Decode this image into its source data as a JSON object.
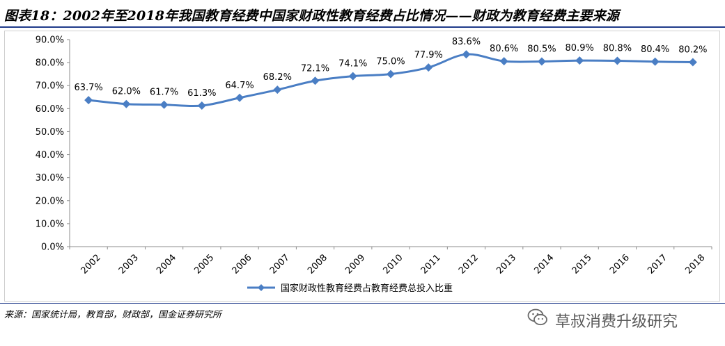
{
  "figure": {
    "title": "图表18：2002年至2018年我国教育经费中国家财政性教育经费占比情况——财政为教育经费主要来源",
    "source": "来源：国家统计局，教育部，财政部，国金证券研究所"
  },
  "watermark": {
    "text": "草叔消费升级研究",
    "logo_icon": "wechat-icon"
  },
  "colors": {
    "series": "#4a7ec4",
    "title_rule": "#1f3a8a"
  },
  "chart_data": {
    "type": "line",
    "title": "",
    "xlabel": "",
    "ylabel": "",
    "ylim": [
      0,
      90
    ],
    "yticks": [
      0,
      10,
      20,
      30,
      40,
      50,
      60,
      70,
      80,
      90
    ],
    "ytick_labels": [
      "0.0%",
      "10.0%",
      "20.0%",
      "30.0%",
      "40.0%",
      "50.0%",
      "60.0%",
      "70.0%",
      "80.0%",
      "90.0%"
    ],
    "grid": false,
    "legend_position": "bottom",
    "categories": [
      "2002",
      "2003",
      "2004",
      "2005",
      "2006",
      "2007",
      "2008",
      "2009",
      "2010",
      "2011",
      "2012",
      "2013",
      "2014",
      "2015",
      "2016",
      "2017",
      "2018"
    ],
    "series": [
      {
        "name": "国家财政性教育经费占教育经费总投入比重",
        "values": [
          63.7,
          62.0,
          61.7,
          61.3,
          64.7,
          68.2,
          72.1,
          74.1,
          75.0,
          77.9,
          83.6,
          80.6,
          80.5,
          80.9,
          80.8,
          80.4,
          80.2
        ],
        "labels": [
          "63.7%",
          "62.0%",
          "61.7%",
          "61.3%",
          "64.7%",
          "68.2%",
          "72.1%",
          "74.1%",
          "75.0%",
          "77.9%",
          "83.6%",
          "80.6%",
          "80.5%",
          "80.9%",
          "80.8%",
          "80.4%",
          "80.2%"
        ]
      }
    ]
  }
}
